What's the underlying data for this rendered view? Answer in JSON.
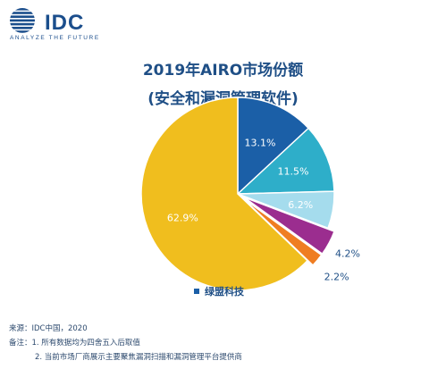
{
  "logo": {
    "name": "IDC",
    "tagline": "ANALYZE THE FUTURE"
  },
  "chart_data": {
    "type": "pie",
    "title": "2019年AIRO市场份额",
    "subtitle": "(安全和漏洞管理软件)",
    "slices": [
      {
        "label": "13.1%",
        "value": 13.1,
        "color": "#1b5fa7"
      },
      {
        "label": "11.5%",
        "value": 11.5,
        "color": "#2eaec9"
      },
      {
        "label": "6.2%",
        "value": 6.2,
        "color": "#a5dced"
      },
      {
        "label": "4.2%",
        "value": 4.2,
        "color": "#9b2d8f"
      },
      {
        "label": "2.2%",
        "value": 2.2,
        "color": "#ef7d22"
      },
      {
        "label": "62.9%",
        "value": 62.9,
        "color": "#f0be1e"
      }
    ],
    "legend": [
      {
        "name": "绿盟科技",
        "color": "#1b5fa7"
      }
    ],
    "legend_position": "bottom"
  },
  "notes": {
    "source": "来源：IDC中国，2020",
    "remark1": "备注：1. 所有数据均为四舍五入后取值",
    "remark2": "2. 当前市场厂商展示主要聚焦漏洞扫描和漏洞管理平台提供商"
  }
}
